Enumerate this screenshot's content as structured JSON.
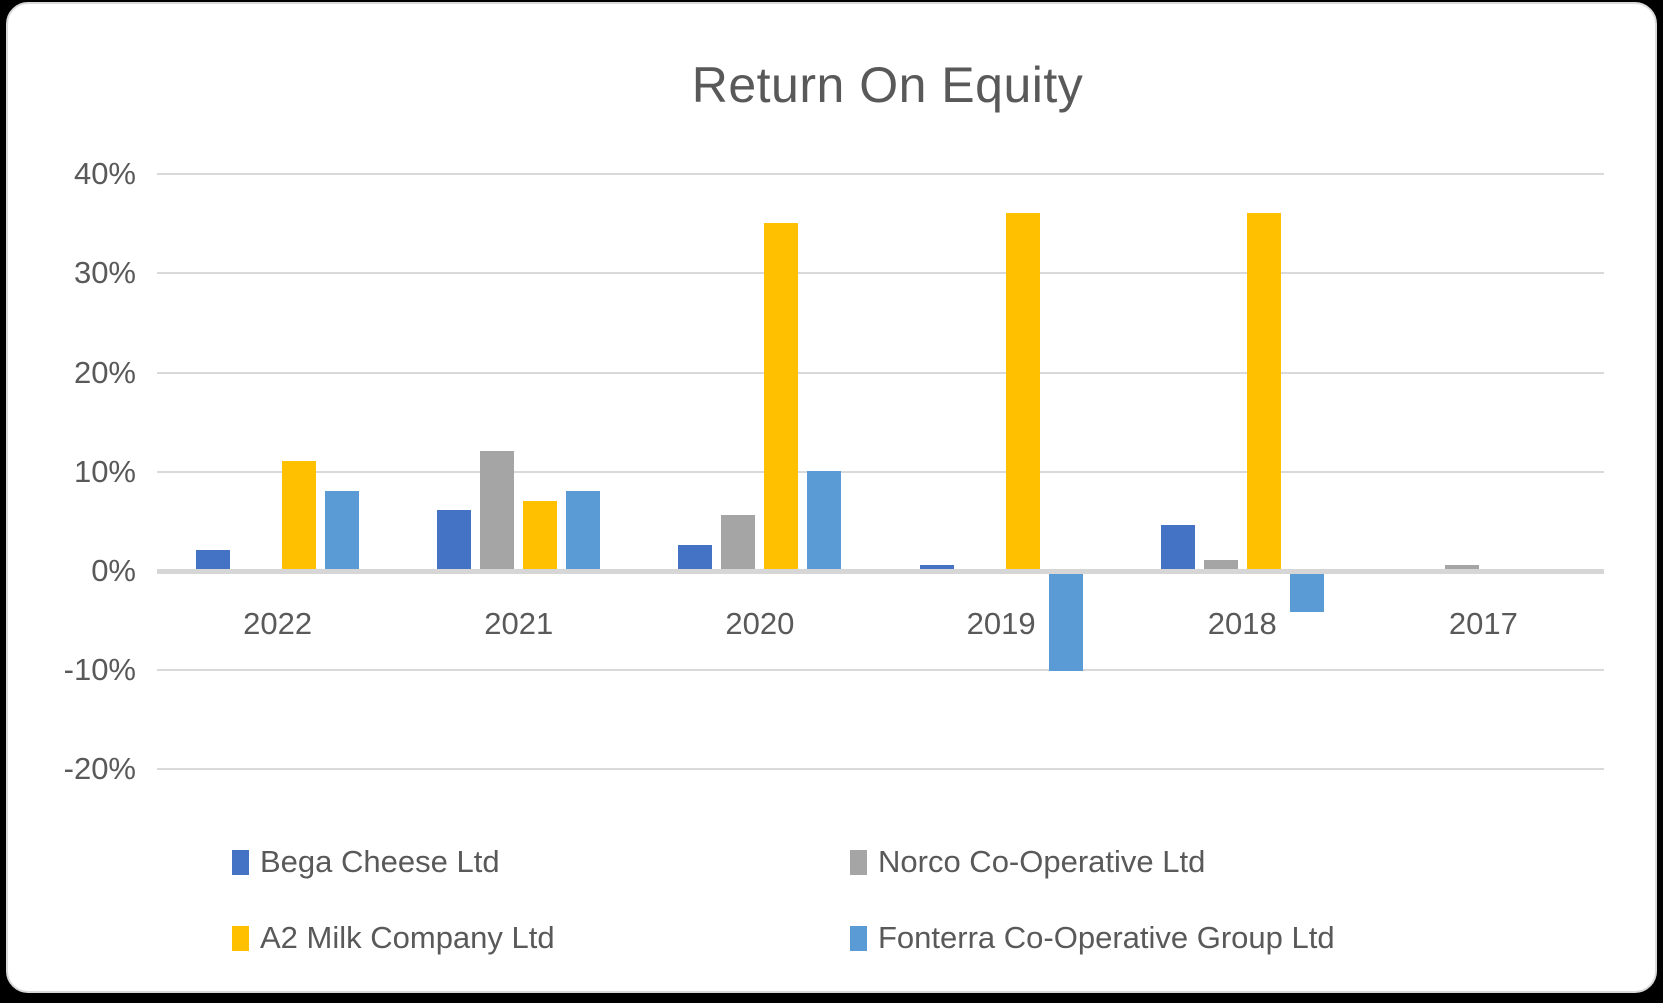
{
  "page": {
    "background_color": "#000000",
    "card_background_color": "#FFFFFF",
    "card_border_color": "#D9D9D9"
  },
  "chart_data": {
    "type": "bar",
    "title": "Return On Equity",
    "title_color": "#595959",
    "categories": [
      "2022",
      "2021",
      "2020",
      "2019",
      "2018",
      "2017"
    ],
    "series": [
      {
        "name": "Bega Cheese Ltd",
        "color": "#4472C4",
        "values": [
          2,
          6,
          2.5,
          0.5,
          4.5,
          0
        ]
      },
      {
        "name": "Norco Co-Operative Ltd",
        "color": "#A5A5A5",
        "values": [
          0,
          12,
          5.5,
          0,
          1,
          0.5
        ]
      },
      {
        "name": "A2 Milk Company Ltd",
        "color": "#FFC000",
        "values": [
          11,
          7,
          35,
          36,
          36,
          0
        ]
      },
      {
        "name": "Fonterra Co-Operative Group Ltd",
        "color": "#5B9BD5",
        "values": [
          8,
          8,
          10,
          -10,
          -4,
          0
        ]
      }
    ],
    "y_axis": {
      "min": -20,
      "max": 40,
      "step": 10,
      "unit": "%",
      "tick_labels": [
        "40%",
        "30%",
        "20%",
        "10%",
        "0%",
        "-10%",
        "-20%"
      ],
      "label_color": "#595959"
    },
    "grid": true,
    "gridline_color": "#D9D9D9",
    "legend_position": "bottom",
    "legend_text_color": "#595959"
  }
}
